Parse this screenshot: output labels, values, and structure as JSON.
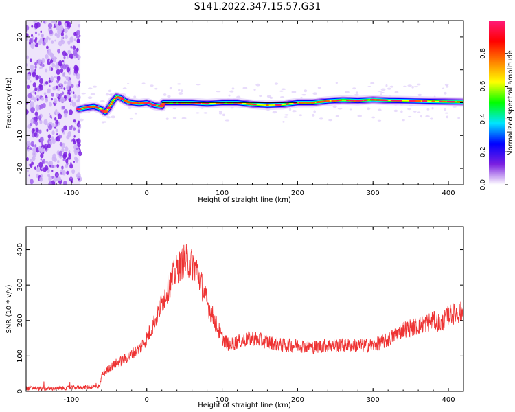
{
  "title": "S141.2022.347.15.57.G31",
  "chart_data": [
    {
      "type": "heatmap",
      "xlabel": "Height of straight line (km)",
      "ylabel": "Frequency (Hz)",
      "xlim": [
        -160,
        420
      ],
      "ylim": [
        -25,
        25
      ],
      "xticks": [
        -100,
        0,
        100,
        200,
        300,
        400
      ],
      "yticks": [
        -20,
        -10,
        0,
        10,
        20
      ],
      "colorbar": {
        "label": "Normalized spectral amplitude",
        "range": [
          0,
          1
        ],
        "ticks": [
          0.0,
          0.2,
          0.4,
          0.6,
          0.8
        ],
        "colors": [
          "#ffffff",
          "#7a1fe0",
          "#0000ff",
          "#00e5ff",
          "#00ff00",
          "#ffff00",
          "#ff8000",
          "#ff0000",
          "#ff1a7a"
        ]
      },
      "ridge": {
        "x": [
          -90,
          -80,
          -70,
          -60,
          -55,
          -50,
          -45,
          -40,
          -35,
          -30,
          -25,
          -20,
          -10,
          0,
          10,
          20,
          22,
          40,
          60,
          80,
          100,
          120,
          140,
          160,
          180,
          200,
          220,
          240,
          260,
          280,
          300,
          320,
          340,
          360,
          380,
          400,
          420
        ],
        "y": [
          -2,
          -1.5,
          -1.2,
          -2,
          -3,
          -1.5,
          0.5,
          1.8,
          1.5,
          0.8,
          0.2,
          0,
          -0.3,
          0,
          -0.8,
          -1.2,
          0,
          0,
          0,
          -0.3,
          0,
          0,
          -0.5,
          -0.8,
          -0.6,
          0,
          0,
          0.5,
          0.8,
          0.6,
          0.9,
          0.7,
          0.6,
          0.5,
          0.4,
          0.3,
          0.2
        ]
      },
      "noise_region_x": [
        -160,
        -88
      ]
    },
    {
      "type": "line",
      "xlabel": "Height of straight line (km)",
      "ylabel": "SNR (10 * v/v)",
      "xlim": [
        -160,
        420
      ],
      "ylim": [
        0,
        465
      ],
      "xticks": [
        -100,
        0,
        100,
        200,
        300,
        400
      ],
      "yticks": [
        0,
        100,
        200,
        300,
        400
      ],
      "color": "#ee3333",
      "series": [
        {
          "x": [
            -160,
            -150,
            -140,
            -120,
            -100,
            -80,
            -62,
            -60,
            -50,
            -40,
            -30,
            -20,
            -10,
            0,
            10,
            20,
            30,
            40,
            50,
            60,
            65,
            70,
            80,
            90,
            100,
            110,
            120,
            140,
            160,
            180,
            200,
            220,
            240,
            260,
            280,
            300,
            320,
            340,
            360,
            380,
            390,
            400,
            420
          ],
          "y": [
            8,
            10,
            8,
            8,
            10,
            12,
            15,
            45,
            65,
            80,
            90,
            105,
            120,
            150,
            195,
            250,
            300,
            345,
            370,
            360,
            350,
            320,
            250,
            200,
            150,
            130,
            140,
            150,
            140,
            130,
            130,
            125,
            130,
            130,
            130,
            130,
            145,
            175,
            185,
            200,
            190,
            215,
            225
          ]
        }
      ]
    }
  ]
}
